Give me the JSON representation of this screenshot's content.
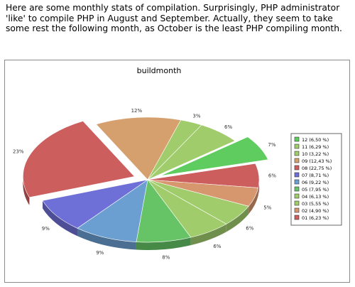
{
  "intro_text": "Here are some monthly stats of compilation. Surprisingly, PHP administrator 'like' to compile PHP in August and September. Actually, they seem to take some rest the following month, as October is the least PHP compiling month.",
  "chart_data": {
    "type": "pie",
    "title": "buildmonth",
    "legend_position": "right",
    "slices": [
      {
        "id": "01",
        "label": "01 (6,23 %)",
        "value": 6.23,
        "slice_label": "6%",
        "exploded": false,
        "color": "#cc5e5e"
      },
      {
        "id": "02",
        "label": "02 (4,90 %)",
        "value": 4.9,
        "slice_label": "5%",
        "exploded": false,
        "color": "#d6966e"
      },
      {
        "id": "03",
        "label": "03 (5,55 %)",
        "value": 5.55,
        "slice_label": "6%",
        "exploded": false,
        "color": "#a0cc6c"
      },
      {
        "id": "04",
        "label": "04 (6,13 %)",
        "value": 6.13,
        "slice_label": "6%",
        "exploded": false,
        "color": "#a0cc6c"
      },
      {
        "id": "05",
        "label": "05 (7,95 %)",
        "value": 7.95,
        "slice_label": "8%",
        "exploded": false,
        "color": "#66c466"
      },
      {
        "id": "06",
        "label": "06 (9,22 %)",
        "value": 9.22,
        "slice_label": "9%",
        "exploded": false,
        "color": "#6b9fd2"
      },
      {
        "id": "07",
        "label": "07 (8,71 %)",
        "value": 8.71,
        "slice_label": "9%",
        "exploded": false,
        "color": "#6f6fd8"
      },
      {
        "id": "08",
        "label": "08 (22,75 %)",
        "value": 22.75,
        "slice_label": "23%",
        "exploded": true,
        "color": "#cc5e5e"
      },
      {
        "id": "09",
        "label": "09 (12,43 %)",
        "value": 12.43,
        "slice_label": "12%",
        "exploded": false,
        "color": "#d6a06e"
      },
      {
        "id": "10",
        "label": "10 (3,22 %)",
        "value": 3.22,
        "slice_label": "3%",
        "exploded": false,
        "color": "#a0cc6c"
      },
      {
        "id": "11",
        "label": "11 (6,29 %)",
        "value": 6.29,
        "slice_label": "6%",
        "exploded": false,
        "color": "#a0cc6c"
      },
      {
        "id": "12",
        "label": "12 (6,50 %)",
        "value": 6.5,
        "slice_label": "7%",
        "exploded": true,
        "color": "#5ecc5e"
      }
    ]
  }
}
